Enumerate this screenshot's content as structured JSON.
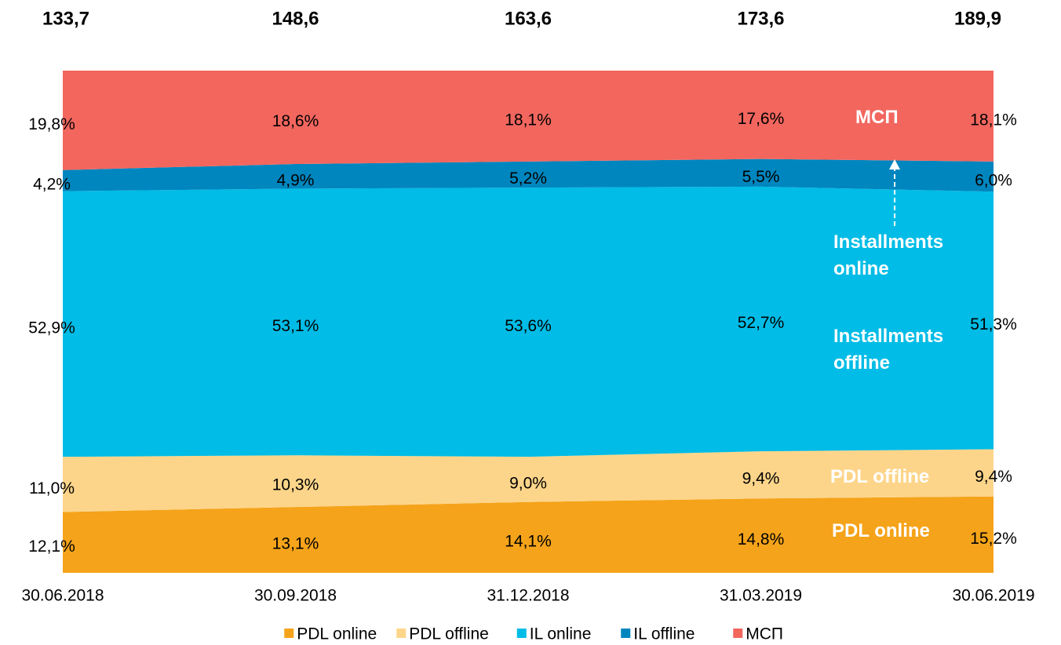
{
  "chart_data": {
    "type": "area",
    "categories": [
      "30.06.2018",
      "30.09.2018",
      "31.12.2018",
      "31.03.2019",
      "30.06.2019"
    ],
    "ylim": [
      0,
      100
    ],
    "totals": [
      133.7,
      148.6,
      163.6,
      173.6,
      189.9
    ],
    "totals_labels": [
      "133,7",
      "148,6",
      "163,6",
      "173,6",
      "189,9"
    ],
    "series": [
      {
        "name": "PDL online",
        "color": "#f5a31a",
        "values": [
          12.1,
          13.1,
          14.1,
          14.8,
          15.2
        ],
        "value_labels": [
          "12,1%",
          "13,1%",
          "14,1%",
          "14,8%",
          "15,2%"
        ]
      },
      {
        "name": "PDL offline",
        "color": "#fdd58a",
        "values": [
          11.0,
          10.3,
          9.0,
          9.4,
          9.4
        ],
        "value_labels": [
          "11,0%",
          "10,3%",
          "9,0%",
          "9,4%",
          "9,4%"
        ]
      },
      {
        "name": "IL online",
        "color": "#00bce6",
        "values": [
          52.9,
          53.1,
          53.6,
          52.7,
          51.3
        ],
        "value_labels": [
          "52,9%",
          "53,1%",
          "53,6%",
          "52,7%",
          "51,3%"
        ]
      },
      {
        "name": "IL offline",
        "color": "#0086bf",
        "values": [
          4.2,
          4.9,
          5.2,
          5.5,
          6.0
        ],
        "value_labels": [
          "4,2%",
          "4,9%",
          "5,2%",
          "5,5%",
          "6,0%"
        ]
      },
      {
        "name": "МСП",
        "color": "#f2665e",
        "values": [
          19.8,
          18.6,
          18.1,
          17.6,
          18.1
        ],
        "value_labels": [
          "19,8%",
          "18,6%",
          "18,1%",
          "17,6%",
          "18,1%"
        ]
      }
    ],
    "annotations": [
      "МСП",
      "Installments online",
      "Installments offline",
      "PDL offline",
      "PDL online"
    ]
  }
}
